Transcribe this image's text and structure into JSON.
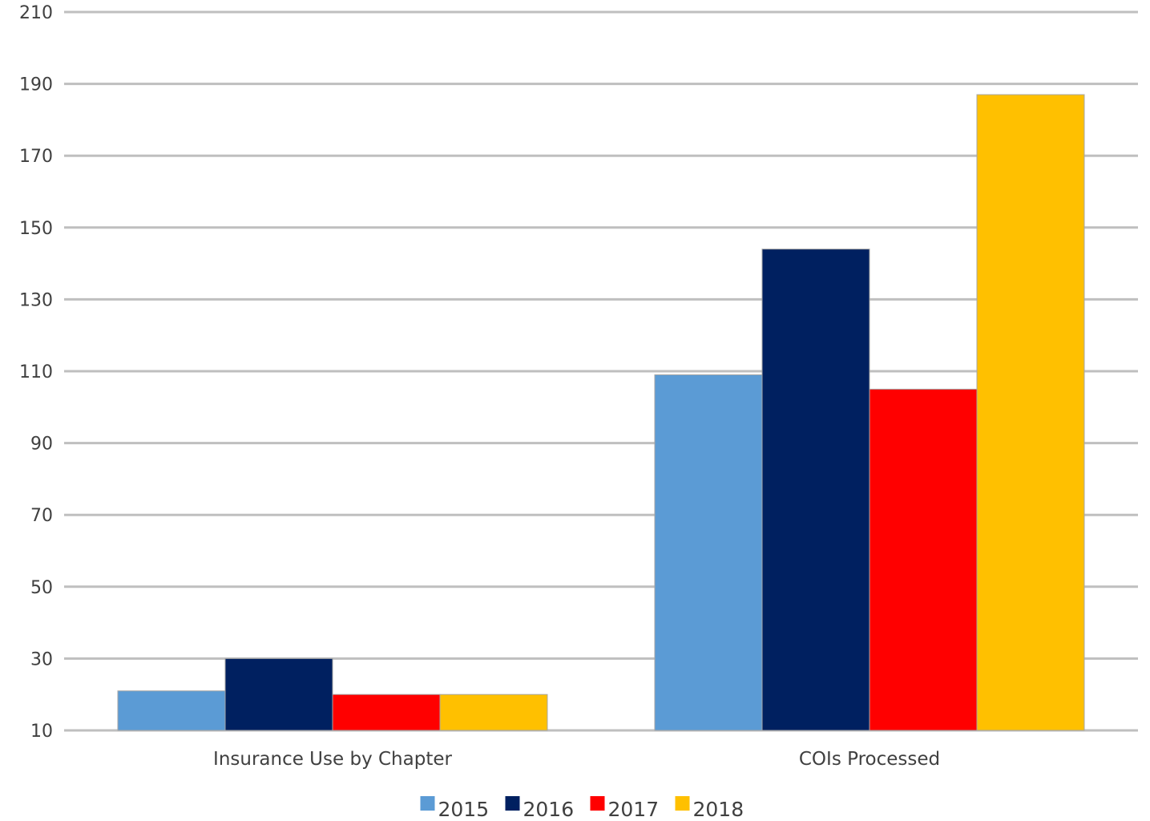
{
  "chart_data": {
    "type": "bar",
    "title": "",
    "xlabel": "",
    "ylabel": "",
    "categories": [
      "Insurance Use by Chapter",
      "COIs Processed"
    ],
    "series": [
      {
        "name": "2015",
        "color": "#5b9bd5",
        "values": [
          21,
          109
        ]
      },
      {
        "name": "2016",
        "color": "#002060",
        "values": [
          30,
          144
        ]
      },
      {
        "name": "2017",
        "color": "#ff0000",
        "values": [
          20,
          105
        ]
      },
      {
        "name": "2018",
        "color": "#ffc000",
        "values": [
          20,
          187
        ]
      }
    ],
    "ylim": [
      10,
      210
    ],
    "yticks": [
      "10",
      "30",
      "50",
      "70",
      "90",
      "110",
      "130",
      "150",
      "170",
      "190",
      "210"
    ],
    "grid": true,
    "legend_position": "bottom"
  }
}
